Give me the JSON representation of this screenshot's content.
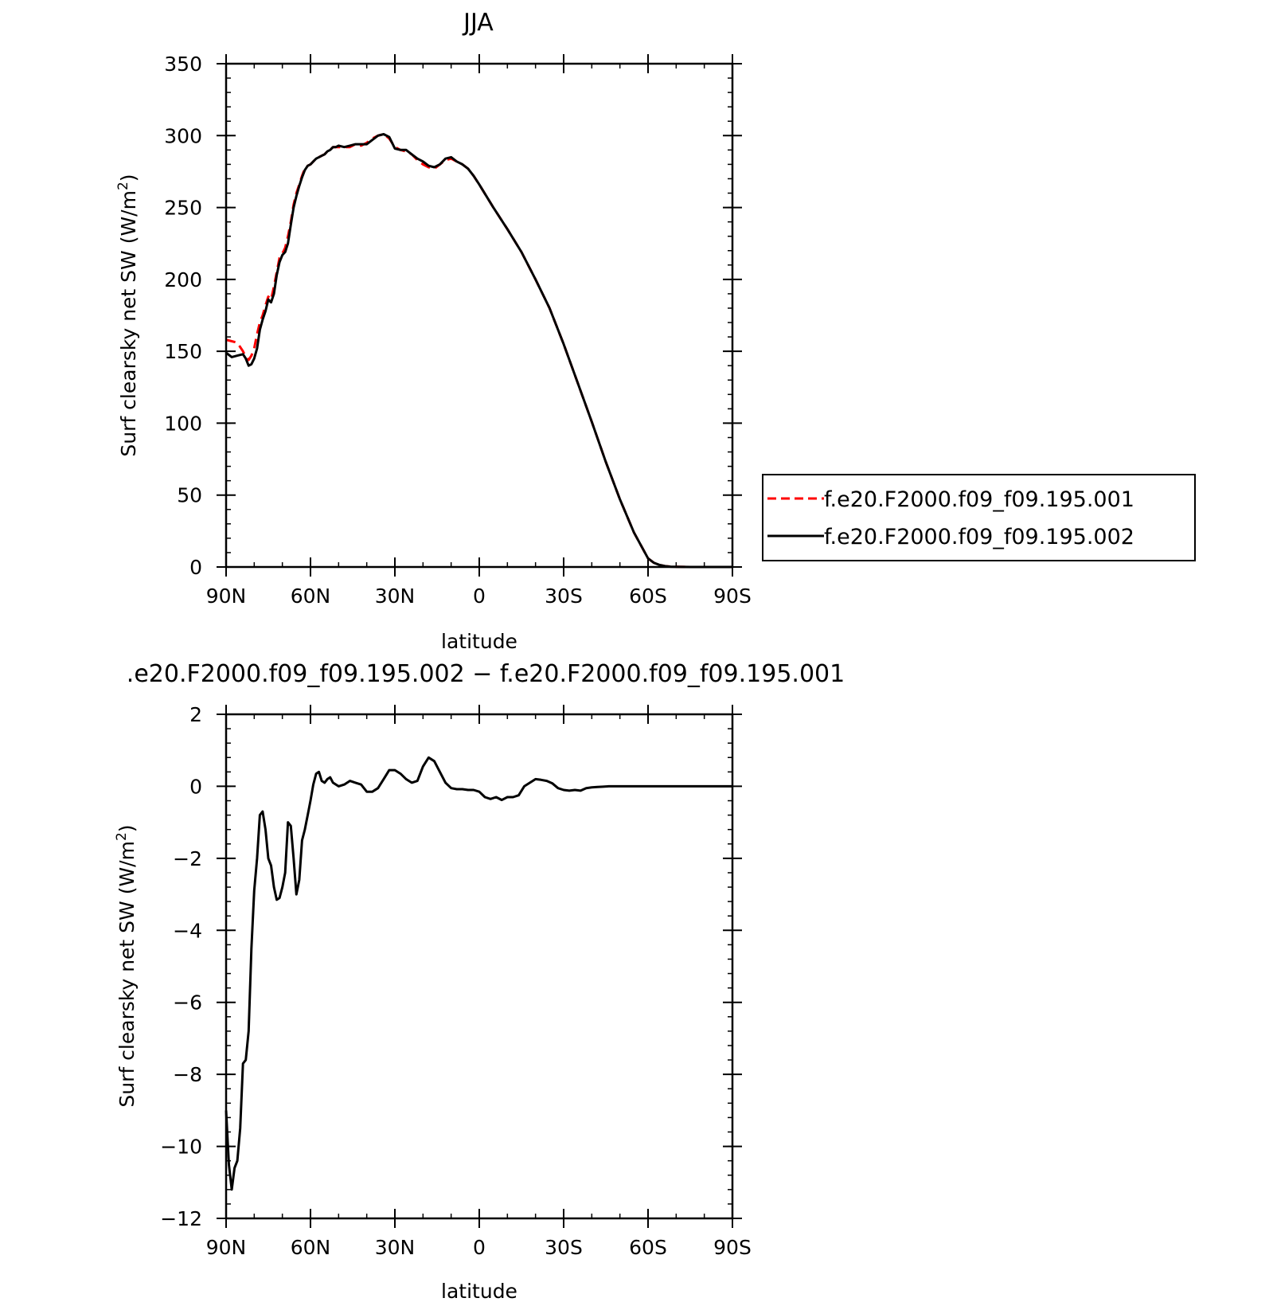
{
  "chart_data": [
    {
      "type": "line",
      "title": "JJA",
      "xlabel": "latitude",
      "ylabel": "Surf clearsky net SW (W/m",
      "ylabel_sup": "2",
      "ylabel_end": ")",
      "xlim": [
        90,
        -90
      ],
      "ylim": [
        0,
        350
      ],
      "x_ticks": [
        90,
        60,
        30,
        0,
        -30,
        -60,
        -90
      ],
      "x_tick_labels": [
        "90N",
        "60N",
        "30N",
        "0",
        "30S",
        "60S",
        "90S"
      ],
      "y_ticks": [
        0,
        50,
        100,
        150,
        200,
        250,
        300,
        350
      ],
      "y_tick_labels": [
        "0",
        "50",
        "100",
        "150",
        "200",
        "250",
        "300",
        "350"
      ],
      "legend_position": "right",
      "series": [
        {
          "name": "f.e20.F2000.f09_f09.195.001",
          "color": "#ff0000",
          "dash": "dashed",
          "x": [
            90,
            88,
            86,
            84,
            83,
            82,
            81,
            80,
            79,
            78,
            77,
            76,
            75,
            74,
            73,
            72,
            71,
            70,
            69,
            68,
            67,
            66,
            65,
            64,
            63,
            62,
            61,
            60,
            59,
            58,
            57,
            56,
            55,
            54,
            53,
            52,
            51,
            50,
            48,
            46,
            44,
            42,
            40,
            38,
            36,
            34,
            32,
            30,
            28,
            26,
            24,
            22,
            20,
            18,
            16,
            14,
            12,
            10,
            8,
            6,
            4,
            2,
            0,
            -5,
            -10,
            -15,
            -20,
            -25,
            -30,
            -35,
            -40,
            -45,
            -50,
            -55,
            -60,
            -62,
            -64,
            -66,
            -68,
            -70,
            -75,
            -80,
            -90
          ],
          "y": [
            158,
            157,
            156,
            150,
            146,
            144,
            147,
            152,
            162,
            170,
            175,
            182,
            188,
            186,
            195,
            205,
            215,
            218,
            222,
            230,
            240,
            252,
            260,
            266,
            272,
            277,
            279,
            280,
            282,
            284,
            285,
            286,
            287,
            289,
            290,
            292,
            292,
            292,
            292,
            292,
            294,
            293,
            295,
            298,
            300,
            301,
            298,
            292,
            290,
            289,
            287,
            283,
            280,
            278,
            277,
            280,
            283,
            284,
            282,
            280,
            277,
            272,
            266,
            250,
            235,
            219,
            200,
            180,
            155,
            128,
            101,
            73,
            47,
            24,
            6,
            3,
            1.5,
            0.6,
            0.2,
            0.1,
            0,
            0,
            0
          ]
        },
        {
          "name": "f.e20.F2000.f09_f09.195.002",
          "color": "#000000",
          "dash": "solid",
          "x": [
            90,
            88,
            86,
            84,
            83,
            82,
            81,
            80,
            79,
            78,
            77,
            76,
            75,
            74,
            73,
            72,
            71,
            70,
            69,
            68,
            67,
            66,
            65,
            64,
            63,
            62,
            61,
            60,
            59,
            58,
            57,
            56,
            55,
            54,
            53,
            52,
            51,
            50,
            48,
            46,
            44,
            42,
            40,
            38,
            36,
            34,
            32,
            30,
            28,
            26,
            24,
            22,
            20,
            18,
            16,
            14,
            12,
            10,
            8,
            6,
            4,
            2,
            0,
            -5,
            -10,
            -15,
            -20,
            -25,
            -30,
            -35,
            -40,
            -45,
            -50,
            -55,
            -60,
            -62,
            -64,
            -66,
            -68,
            -70,
            -75,
            -80,
            -90
          ],
          "y": [
            149,
            146,
            147,
            148,
            145,
            140,
            141,
            145,
            152,
            165,
            172,
            178,
            186,
            184,
            190,
            203,
            212,
            217,
            219,
            225,
            238,
            250,
            258,
            265,
            271,
            276,
            279,
            280,
            282,
            284,
            285,
            286,
            287,
            289,
            290,
            292,
            292,
            293,
            292,
            293,
            294,
            294,
            294,
            297,
            300,
            301,
            299,
            291,
            290,
            290,
            287,
            284,
            282,
            279,
            278,
            280,
            284,
            285,
            282,
            280,
            277,
            272,
            266,
            250,
            235,
            219,
            200,
            180,
            155,
            128,
            101,
            73,
            47,
            24,
            6,
            3,
            1.5,
            0.6,
            0.2,
            0.1,
            0,
            0,
            0
          ]
        }
      ]
    },
    {
      "type": "line",
      "title": ".e20.F2000.f09_f09.195.002 − f.e20.F2000.f09_f09.195.001",
      "xlabel": "latitude",
      "ylabel": "Surf clearsky net SW (W/m",
      "ylabel_sup": "2",
      "ylabel_end": ")",
      "xlim": [
        90,
        -90
      ],
      "ylim": [
        -12,
        2
      ],
      "x_ticks": [
        90,
        60,
        30,
        0,
        -30,
        -60,
        -90
      ],
      "x_tick_labels": [
        "90N",
        "60N",
        "30N",
        "0",
        "30S",
        "60S",
        "90S"
      ],
      "y_ticks": [
        -12,
        -10,
        -8,
        -6,
        -4,
        -2,
        0,
        2
      ],
      "y_tick_labels": [
        "−12",
        "−10",
        "−8",
        "−6",
        "−4",
        "−2",
        "0",
        "2"
      ],
      "series": [
        {
          "color": "#000000",
          "dash": "solid",
          "x": [
            90,
            89,
            88,
            87,
            86,
            85,
            84,
            83,
            82,
            81,
            80,
            79,
            78,
            77,
            76,
            75,
            74,
            73,
            72,
            71,
            70,
            69,
            68,
            67,
            66,
            65,
            64,
            63,
            62,
            61,
            60,
            59,
            58,
            57,
            56,
            55,
            54,
            53,
            52,
            50,
            48,
            46,
            44,
            42,
            40,
            38,
            36,
            34,
            32,
            30,
            28,
            26,
            24,
            22,
            20,
            18,
            16,
            14,
            12,
            10,
            8,
            6,
            4,
            2,
            0,
            -2,
            -4,
            -6,
            -8,
            -10,
            -12,
            -14,
            -16,
            -18,
            -20,
            -22,
            -24,
            -26,
            -28,
            -30,
            -32,
            -34,
            -36,
            -38,
            -40,
            -42,
            -44,
            -46,
            -48,
            -50,
            -55,
            -60,
            -65,
            -70,
            -75,
            -80,
            -85,
            -90
          ],
          "y": [
            -9.0,
            -10.5,
            -11.2,
            -10.6,
            -10.4,
            -9.5,
            -7.7,
            -7.6,
            -6.8,
            -4.5,
            -2.9,
            -2.0,
            -0.8,
            -0.7,
            -1.2,
            -2.0,
            -2.2,
            -2.8,
            -3.15,
            -3.1,
            -2.8,
            -2.4,
            -1.0,
            -1.1,
            -2.0,
            -3.0,
            -2.6,
            -1.5,
            -1.2,
            -0.8,
            -0.4,
            0.05,
            0.35,
            0.4,
            0.15,
            0.1,
            0.2,
            0.25,
            0.1,
            0.0,
            0.05,
            0.15,
            0.1,
            0.05,
            -0.15,
            -0.15,
            -0.05,
            0.2,
            0.45,
            0.45,
            0.35,
            0.2,
            0.1,
            0.15,
            0.55,
            0.8,
            0.7,
            0.4,
            0.1,
            -0.05,
            -0.08,
            -0.08,
            -0.1,
            -0.1,
            -0.15,
            -0.3,
            -0.35,
            -0.3,
            -0.38,
            -0.3,
            -0.3,
            -0.25,
            0.0,
            0.1,
            0.2,
            0.18,
            0.15,
            0.08,
            -0.05,
            -0.1,
            -0.12,
            -0.1,
            -0.12,
            -0.05,
            -0.03,
            -0.02,
            -0.01,
            0.0,
            0.0,
            0.0,
            0.0,
            0.0,
            0.0,
            0.0,
            0.0,
            0.0,
            0.0,
            0.0
          ]
        }
      ]
    }
  ]
}
